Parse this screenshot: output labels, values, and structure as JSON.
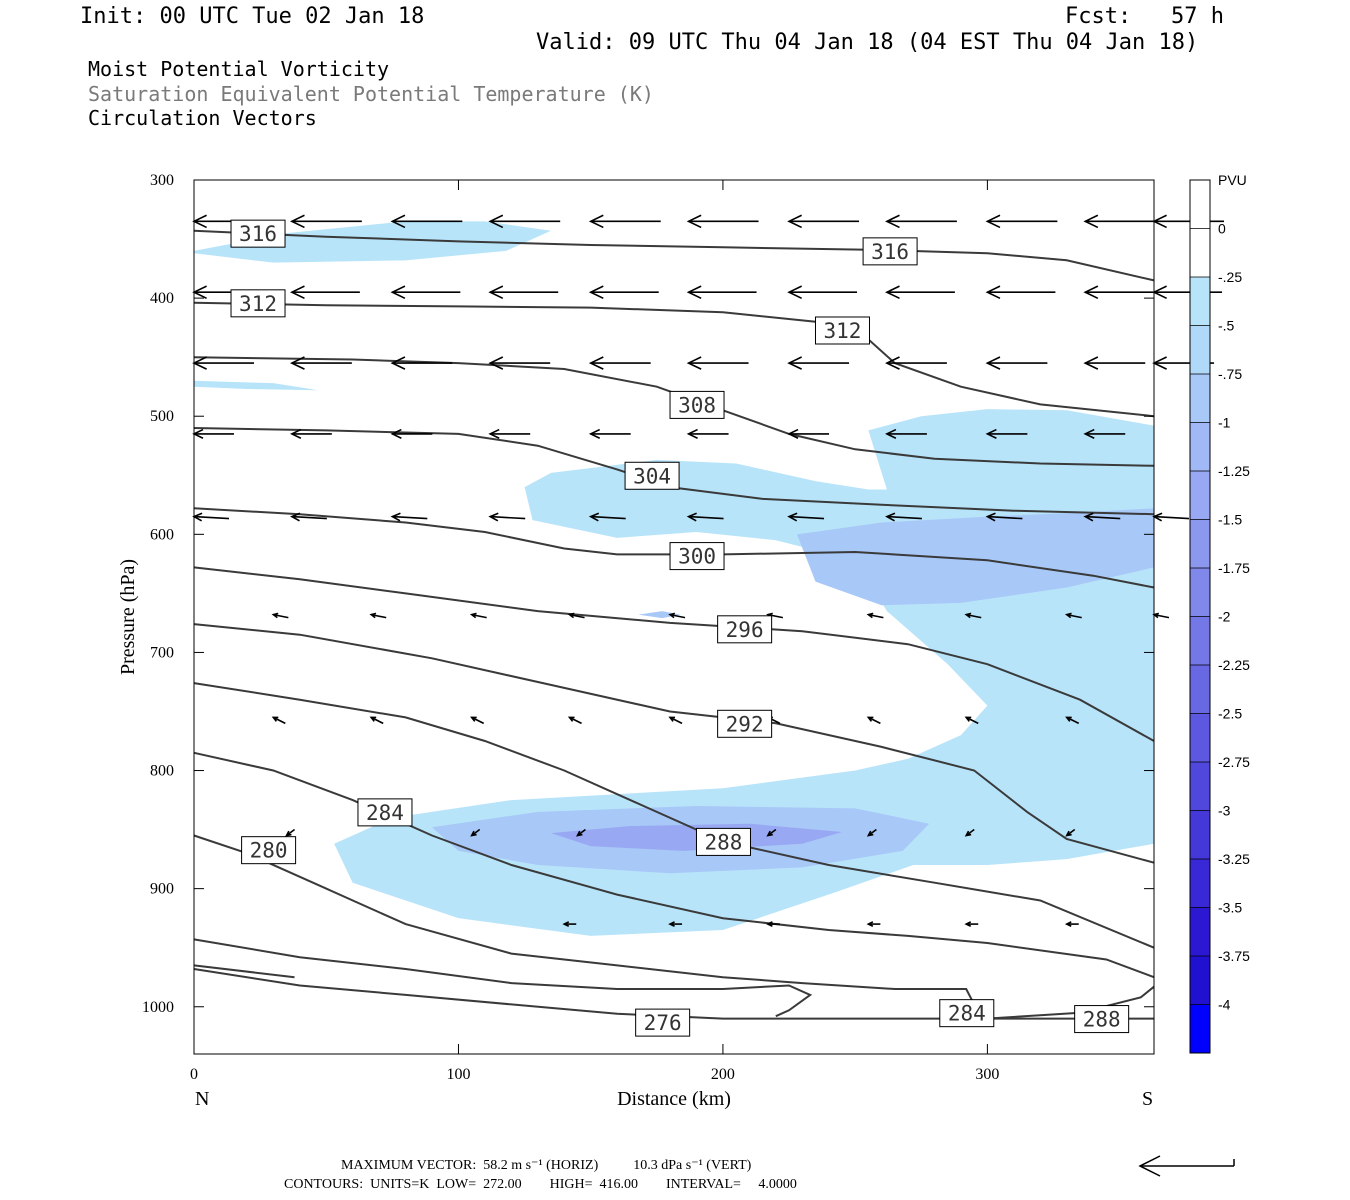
{
  "header": {
    "init": "Init: 00 UTC Tue 02 Jan 18",
    "fcst": "Fcst:   57 h",
    "valid": "Valid: 09 UTC Thu 04 Jan 18 (04 EST Thu 04 Jan 18)",
    "field1": "Moist Potential Vorticity",
    "field2": "Saturation Equivalent Potential Temperature (K)",
    "field3": "Circulation Vectors"
  },
  "colors": {
    "shade_1": "#b8e4fa",
    "shade_2": "#a8c8f8",
    "shade_3": "#98a8f2",
    "contour": "#3a3a3a"
  },
  "footer": {
    "maxvec": "MAXIMUM VECTOR:  58.2 m s⁻¹ (HORIZ)          10.3 dPa s⁻¹ (VERT)",
    "contours": "CONTOURS:  UNITS=K  LOW=  272.00        HIGH=  416.00        INTERVAL=     4.0000"
  },
  "chart_data": {
    "type": "cross-section",
    "xlabel": "Distance (km)",
    "ylabel": "Pressure (hPa)",
    "xlim": [
      0,
      363
    ],
    "ylim": [
      1040,
      300
    ],
    "x_ticks": [
      0,
      100,
      200,
      300
    ],
    "y_ticks": [
      300,
      400,
      500,
      600,
      700,
      800,
      900,
      1000
    ],
    "x_end_labels": {
      "left": "N",
      "right": "S"
    },
    "colorbar": {
      "title": "PVU",
      "labels": [
        "0",
        "-.25",
        "-.5",
        "-.75",
        "-1",
        "-1.25",
        "-1.5",
        "-1.75",
        "-2",
        "-2.25",
        "-2.5",
        "-2.75",
        "-3",
        "-3.25",
        "-3.5",
        "-3.75",
        "-4"
      ],
      "colors": [
        "#ffffff",
        "#ffffff",
        "#b8e4fa",
        "#b0d8f9",
        "#a8c8f8",
        "#a0b8f5",
        "#98a8f2",
        "#8c98ee",
        "#8088ea",
        "#7478e6",
        "#6868e2",
        "#5c58df",
        "#5048dc",
        "#4438d9",
        "#3828d6",
        "#2c18d3",
        "#2010d0",
        "#0000ff"
      ]
    },
    "pv_regions": [
      {
        "level": 1,
        "points": [
          [
            0,
            360
          ],
          [
            35,
            345
          ],
          [
            80,
            335
          ],
          [
            110,
            335
          ],
          [
            135,
            343
          ],
          [
            118,
            360
          ],
          [
            80,
            368
          ],
          [
            30,
            370
          ],
          [
            0,
            362
          ]
        ]
      },
      {
        "level": 1,
        "points": [
          [
            0,
            470
          ],
          [
            30,
            472
          ],
          [
            47,
            478
          ],
          [
            20,
            477
          ],
          [
            0,
            475
          ]
        ]
      },
      {
        "level": 1,
        "points": [
          [
            255,
            512
          ],
          [
            275,
            500
          ],
          [
            300,
            494
          ],
          [
            330,
            495
          ],
          [
            363,
            508
          ],
          [
            363,
            862
          ],
          [
            330,
            875
          ],
          [
            300,
            880
          ],
          [
            272,
            880
          ],
          [
            240,
            905
          ],
          [
            200,
            935
          ],
          [
            150,
            940
          ],
          [
            100,
            925
          ],
          [
            60,
            895
          ],
          [
            53,
            862
          ],
          [
            75,
            840
          ],
          [
            120,
            825
          ],
          [
            200,
            815
          ],
          [
            250,
            800
          ],
          [
            270,
            790
          ],
          [
            290,
            770
          ],
          [
            300,
            745
          ],
          [
            285,
            710
          ],
          [
            262,
            665
          ],
          [
            250,
            622
          ],
          [
            220,
            605
          ],
          [
            190,
            598
          ],
          [
            160,
            603
          ],
          [
            128,
            588
          ],
          [
            125,
            560
          ],
          [
            135,
            548
          ],
          [
            175,
            537
          ],
          [
            205,
            540
          ],
          [
            235,
            555
          ],
          [
            255,
            562
          ],
          [
            262,
            562
          ]
        ]
      },
      {
        "level": 2,
        "points": [
          [
            228,
            600
          ],
          [
            260,
            590
          ],
          [
            300,
            585
          ],
          [
            330,
            582
          ],
          [
            363,
            578
          ],
          [
            363,
            628
          ],
          [
            330,
            645
          ],
          [
            290,
            658
          ],
          [
            260,
            660
          ],
          [
            235,
            640
          ]
        ]
      },
      {
        "level": 2,
        "points": [
          [
            90,
            848
          ],
          [
            130,
            835
          ],
          [
            190,
            830
          ],
          [
            250,
            832
          ],
          [
            278,
            845
          ],
          [
            268,
            868
          ],
          [
            230,
            882
          ],
          [
            180,
            887
          ],
          [
            130,
            880
          ],
          [
            100,
            868
          ]
        ]
      },
      {
        "level": 3,
        "points": [
          [
            135,
            853
          ],
          [
            165,
            847
          ],
          [
            210,
            845
          ],
          [
            245,
            852
          ],
          [
            230,
            862
          ],
          [
            185,
            868
          ],
          [
            150,
            864
          ]
        ]
      },
      {
        "level": 2,
        "points": [
          [
            168,
            668
          ],
          [
            177,
            665
          ],
          [
            184,
            668
          ],
          [
            177,
            671
          ]
        ]
      }
    ],
    "contours": [
      {
        "label": "316",
        "points": [
          [
            0,
            343
          ],
          [
            50,
            348
          ],
          [
            100,
            352
          ],
          [
            150,
            355
          ],
          [
            200,
            357
          ],
          [
            255,
            359
          ],
          [
            300,
            362
          ],
          [
            330,
            368
          ],
          [
            363,
            385
          ]
        ],
        "label_at": [
          14,
          345
        ],
        "label2_at": [
          253,
          360
        ]
      },
      {
        "label": "312",
        "points": [
          [
            0,
            404
          ],
          [
            50,
            406
          ],
          [
            100,
            407
          ],
          [
            150,
            408
          ],
          [
            200,
            412
          ],
          [
            235,
            420
          ],
          [
            255,
            435
          ],
          [
            265,
            455
          ],
          [
            290,
            475
          ],
          [
            320,
            490
          ],
          [
            363,
            500
          ]
        ],
        "label_at": [
          14,
          404
        ],
        "label2_at": [
          235,
          427
        ]
      },
      {
        "label": "308",
        "points": [
          [
            0,
            450
          ],
          [
            60,
            452
          ],
          [
            100,
            455
          ],
          [
            140,
            460
          ],
          [
            175,
            475
          ],
          [
            200,
            495
          ],
          [
            225,
            515
          ],
          [
            250,
            528
          ],
          [
            280,
            536
          ],
          [
            320,
            540
          ],
          [
            363,
            542
          ]
        ],
        "label_at": [
          180,
          490
        ]
      },
      {
        "label": "304",
        "points": [
          [
            0,
            510
          ],
          [
            50,
            512
          ],
          [
            100,
            515
          ],
          [
            130,
            525
          ],
          [
            160,
            545
          ],
          [
            180,
            560
          ],
          [
            215,
            570
          ],
          [
            260,
            575
          ],
          [
            310,
            580
          ],
          [
            363,
            583
          ]
        ],
        "label_at": [
          163,
          550
        ]
      },
      {
        "label": "300",
        "points": [
          [
            0,
            578
          ],
          [
            40,
            583
          ],
          [
            80,
            590
          ],
          [
            110,
            598
          ],
          [
            140,
            612
          ],
          [
            160,
            617
          ],
          [
            200,
            617
          ],
          [
            250,
            615
          ],
          [
            300,
            622
          ],
          [
            340,
            635
          ],
          [
            363,
            645
          ]
        ],
        "label_at": [
          180,
          618
        ]
      },
      {
        "label": "296",
        "points": [
          [
            0,
            628
          ],
          [
            40,
            638
          ],
          [
            80,
            650
          ],
          [
            130,
            665
          ],
          [
            180,
            675
          ],
          [
            230,
            682
          ],
          [
            270,
            693
          ],
          [
            300,
            710
          ],
          [
            335,
            740
          ],
          [
            363,
            775
          ]
        ],
        "label_at": [
          198,
          680
        ]
      },
      {
        "label": "292",
        "points": [
          [
            0,
            676
          ],
          [
            40,
            685
          ],
          [
            90,
            705
          ],
          [
            140,
            730
          ],
          [
            180,
            750
          ],
          [
            220,
            760
          ],
          [
            260,
            780
          ],
          [
            295,
            800
          ],
          [
            315,
            835
          ],
          [
            330,
            858
          ],
          [
            363,
            878
          ]
        ],
        "label_at": [
          198,
          760
        ]
      },
      {
        "label": "288",
        "points": [
          [
            0,
            726
          ],
          [
            40,
            740
          ],
          [
            80,
            755
          ],
          [
            110,
            775
          ],
          [
            140,
            800
          ],
          [
            170,
            830
          ],
          [
            200,
            860
          ],
          [
            240,
            880
          ],
          [
            280,
            895
          ],
          [
            320,
            910
          ],
          [
            363,
            950
          ]
        ],
        "label_at": [
          190,
          860
        ]
      },
      {
        "label": "284",
        "points": [
          [
            0,
            785
          ],
          [
            30,
            800
          ],
          [
            60,
            825
          ],
          [
            90,
            855
          ],
          [
            120,
            880
          ],
          [
            160,
            905
          ],
          [
            200,
            925
          ],
          [
            240,
            935
          ],
          [
            270,
            940
          ],
          [
            300,
            946
          ],
          [
            345,
            960
          ],
          [
            363,
            975
          ]
        ],
        "label_at": [
          62,
          835
        ]
      },
      {
        "label": "280",
        "points": [
          [
            0,
            855
          ],
          [
            20,
            870
          ],
          [
            50,
            900
          ],
          [
            80,
            930
          ],
          [
            120,
            955
          ],
          [
            160,
            965
          ],
          [
            200,
            975
          ],
          [
            230,
            980
          ],
          [
            265,
            985
          ],
          [
            292,
            985
          ],
          [
            295,
            998
          ],
          [
            290,
            1010
          ],
          [
            300,
            1010
          ],
          [
            335,
            1005
          ],
          [
            358,
            992
          ],
          [
            363,
            983
          ]
        ],
        "label_at": [
          18,
          867
        ]
      },
      {
        "label": "276",
        "points": [
          [
            0,
            943
          ],
          [
            40,
            958
          ],
          [
            80,
            968
          ],
          [
            120,
            980
          ],
          [
            160,
            985
          ],
          [
            200,
            985
          ],
          [
            225,
            982
          ],
          [
            233,
            990
          ],
          [
            225,
            1003
          ],
          [
            220,
            1008
          ]
        ],
        "label_at": [
          167,
          1013
        ]
      },
      {
        "label": "",
        "points": [
          [
            0,
            968
          ],
          [
            40,
            982
          ],
          [
            80,
            990
          ],
          [
            120,
            998
          ],
          [
            160,
            1006
          ],
          [
            200,
            1010
          ],
          [
            363,
            1010
          ]
        ]
      },
      {
        "label": "",
        "points": [
          [
            0,
            965
          ],
          [
            38,
            975
          ]
        ]
      }
    ],
    "extra_labels": [
      {
        "label": "284",
        "at": [
          282,
          1005
        ]
      },
      {
        "label": "288",
        "at": [
          333,
          1010
        ]
      }
    ],
    "vectors": [
      {
        "p": 335,
        "len": 0.7,
        "dy": 0,
        "xs": [
          0,
          37,
          75,
          112,
          150,
          187,
          225,
          262,
          300,
          337,
          363
        ]
      },
      {
        "p": 395,
        "len": 0.68,
        "dy": 0,
        "xs": [
          0,
          37,
          75,
          112,
          150,
          187,
          225,
          262,
          300,
          337,
          363
        ]
      },
      {
        "p": 455,
        "len": 0.6,
        "dy": 0,
        "xs": [
          0,
          37,
          75,
          112,
          150,
          187,
          225,
          262,
          300,
          337,
          363
        ]
      },
      {
        "p": 515,
        "len": 0.4,
        "dy": 0,
        "xs": [
          0,
          37,
          75,
          112,
          150,
          187,
          225,
          262,
          300,
          337
        ]
      },
      {
        "p": 585,
        "len": 0.35,
        "dy": 2,
        "xs": [
          0,
          37,
          75,
          112,
          150,
          187,
          225,
          262,
          300,
          337,
          363
        ]
      },
      {
        "p": 668,
        "len": 0.15,
        "dy": 3,
        "xs": [
          30,
          67,
          105,
          142,
          180,
          217,
          255,
          292,
          330,
          363
        ]
      },
      {
        "p": 755,
        "len": 0.12,
        "dy": 6,
        "xs": [
          30,
          67,
          105,
          142,
          180,
          217,
          255,
          292,
          330
        ]
      },
      {
        "p": 855,
        "len": 0.08,
        "dy": -6,
        "xs": [
          35,
          105,
          145,
          217,
          255,
          292,
          330
        ]
      },
      {
        "p": 930,
        "len": 0.12,
        "dy": 0,
        "xs": [
          140,
          180,
          217,
          255,
          292,
          330
        ]
      }
    ],
    "maxvec_hint": "arrow"
  }
}
